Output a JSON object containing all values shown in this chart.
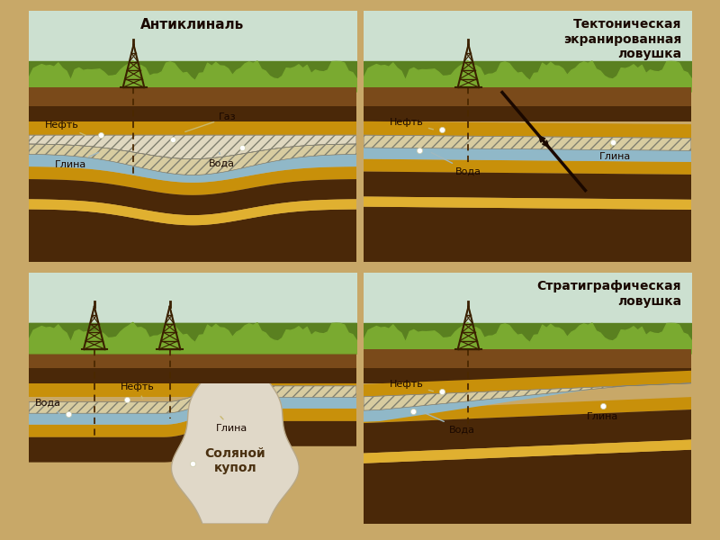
{
  "outer_bg": "#c8a868",
  "sky_color": "#cce0d0",
  "grass_dark": "#5a8020",
  "grass_light": "#7aaa30",
  "brown_surface": "#7a4a1a",
  "brown_dark": "#4a2808",
  "brown_mid": "#6a3a10",
  "yellow_band": "#c8900a",
  "yellow_light": "#e0b030",
  "blue_water": "#90b8c8",
  "blue_water_light": "#a8ccd8",
  "hatch_fill": "#d8cca0",
  "gas_fill": "#e0d8c0",
  "salt_color": "#e0d8c8",
  "panel_line": "#a08050",
  "title1": "Антиклиналь",
  "title2": "Тектоническая\nэкранированная\nловушка",
  "title4": "Стратиграфическая\nловушка",
  "label_gas": "Газ",
  "label_oil": "Нефть",
  "label_water": "Вода",
  "label_clay": "Глина",
  "label_salt": "Соляной\nкупол",
  "label_color": "#1a0800",
  "orange_bar": "#d05820",
  "blue_bar": "#4878b0"
}
